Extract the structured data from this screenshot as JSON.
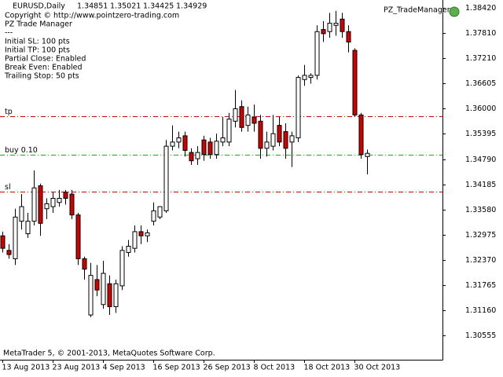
{
  "chart_data": {
    "type": "candlestick",
    "symbol": "EURUSD,Daily",
    "indicator": "PZ_TradeManager",
    "info_lines": [
      "Copyright © http://www.pointzero-trading.com",
      "PZ Trade Manager",
      "---",
      "Initial SL: 100 pts",
      "Initial TP: 100 pts",
      "Partial Close: Enabled",
      "Break Even: Enabled",
      "Trailing Stop: 50 pts"
    ],
    "footer": "MetaTrader 5, © 2001-2013, MetaQuotes Software Corp.",
    "categories": [
      "13 Aug 2013",
      null,
      null,
      null,
      null,
      null,
      null,
      null,
      "23 Aug 2013",
      null,
      null,
      null,
      null,
      null,
      null,
      null,
      "4 Sep 2013",
      null,
      null,
      null,
      null,
      null,
      null,
      null,
      "16 Sep 2013",
      null,
      null,
      null,
      null,
      null,
      null,
      null,
      "26 Sep 2013",
      null,
      null,
      null,
      null,
      null,
      null,
      null,
      "8 Oct 2013",
      null,
      null,
      null,
      null,
      null,
      null,
      null,
      "18 Oct 2013",
      null,
      null,
      null,
      null,
      null,
      null,
      null,
      "30 Oct 2013",
      null,
      null
    ],
    "open": [
      1.3295,
      1.326,
      1.324,
      1.333,
      1.33,
      1.333,
      1.3415,
      1.336,
      1.3365,
      1.3375,
      1.34,
      1.3395,
      1.3345,
      1.324,
      1.3105,
      1.319,
      1.313,
      1.318,
      1.3125,
      1.3175,
      1.3255,
      1.3265,
      1.3305,
      1.3295,
      1.333,
      1.334,
      1.3355,
      1.351,
      1.352,
      1.3535,
      1.3495,
      1.348,
      1.3525,
      1.352,
      1.349,
      1.352,
      1.352,
      1.357,
      1.3605,
      1.356,
      1.358,
      1.357,
      1.3505,
      1.351,
      1.356,
      1.3545,
      1.352,
      1.353,
      1.367,
      1.3675,
      1.368,
      1.379,
      1.3785,
      1.38,
      1.3815,
      1.3785,
      1.374,
      1.3585,
      1.34851
    ],
    "high": [
      1.3305,
      1.3275,
      1.336,
      1.3395,
      1.335,
      1.3452,
      1.342,
      1.3385,
      1.34,
      1.3405,
      1.3405,
      1.3405,
      1.335,
      1.3245,
      1.323,
      1.3225,
      1.3235,
      1.32,
      1.319,
      1.327,
      1.3285,
      1.332,
      1.332,
      1.331,
      1.3375,
      1.3365,
      1.3525,
      1.356,
      1.3545,
      1.3545,
      1.3505,
      1.351,
      1.3535,
      1.353,
      1.354,
      1.358,
      1.359,
      1.3645,
      1.362,
      1.3605,
      1.361,
      1.3585,
      1.3545,
      1.3585,
      1.358,
      1.3565,
      1.3545,
      1.368,
      1.3705,
      1.3685,
      1.38,
      1.381,
      1.383,
      1.3835,
      1.383,
      1.38,
      1.3745,
      1.359,
      1.35021
    ],
    "low": [
      1.3255,
      1.324,
      1.3225,
      1.331,
      1.329,
      1.332,
      1.3295,
      1.3335,
      1.335,
      1.3365,
      1.337,
      1.3335,
      1.3225,
      1.319,
      1.31,
      1.315,
      1.312,
      1.3105,
      1.311,
      1.3165,
      1.3245,
      1.3255,
      1.3275,
      1.328,
      1.332,
      1.3335,
      1.335,
      1.35,
      1.3505,
      1.3485,
      1.3465,
      1.3465,
      1.3475,
      1.348,
      1.348,
      1.351,
      1.351,
      1.3555,
      1.3545,
      1.3545,
      1.3545,
      1.348,
      1.3485,
      1.35,
      1.351,
      1.348,
      1.346,
      1.352,
      1.3655,
      1.366,
      1.367,
      1.376,
      1.377,
      1.3775,
      1.377,
      1.3735,
      1.358,
      1.348,
      1.34425
    ],
    "close": [
      1.3265,
      1.325,
      1.334,
      1.3365,
      1.333,
      1.341,
      1.3325,
      1.3372,
      1.3385,
      1.3385,
      1.3385,
      1.3345,
      1.324,
      1.3215,
      1.32,
      1.3165,
      1.3205,
      1.3125,
      1.318,
      1.326,
      1.327,
      1.3305,
      1.3295,
      1.3302,
      1.3355,
      1.3365,
      1.351,
      1.352,
      1.353,
      1.35,
      1.3475,
      1.3495,
      1.349,
      1.349,
      1.3522,
      1.353,
      1.3575,
      1.36,
      1.3555,
      1.3585,
      1.3565,
      1.3505,
      1.352,
      1.354,
      1.352,
      1.3505,
      1.3535,
      1.3675,
      1.368,
      1.368,
      1.3785,
      1.378,
      1.3805,
      1.3805,
      1.3785,
      1.376,
      1.3585,
      1.349,
      1.34929
    ],
    "bull_color": "#ffffff",
    "bear_color": "#d40000",
    "levels": [
      {
        "name": "tp",
        "value": 1.35819,
        "color": "#d40000"
      },
      {
        "name": "buy 0.10",
        "value": 1.34896,
        "color": "#00c000"
      },
      {
        "name": "sl",
        "value": 1.3401,
        "color": "#d40000"
      }
    ],
    "ylim": [
      1.29977,
      1.38608
    ],
    "yticks": [
      {
        "value": 1.3842,
        "label": "1.38420"
      },
      {
        "value": 1.3781,
        "label": "1.37810"
      },
      {
        "value": 1.3721,
        "label": "1.37210"
      },
      1.36605,
      {
        "value": 1.36,
        "label": "1.36000"
      },
      1.35395,
      {
        "value": 1.3479,
        "label": "1.34790"
      },
      1.34185,
      {
        "value": 1.3358,
        "label": "1.33580"
      },
      1.32975,
      {
        "value": 1.3237,
        "label": "1.32370"
      },
      1.31765,
      {
        "value": 1.3116,
        "label": "1.31160"
      },
      1.30555
    ]
  }
}
